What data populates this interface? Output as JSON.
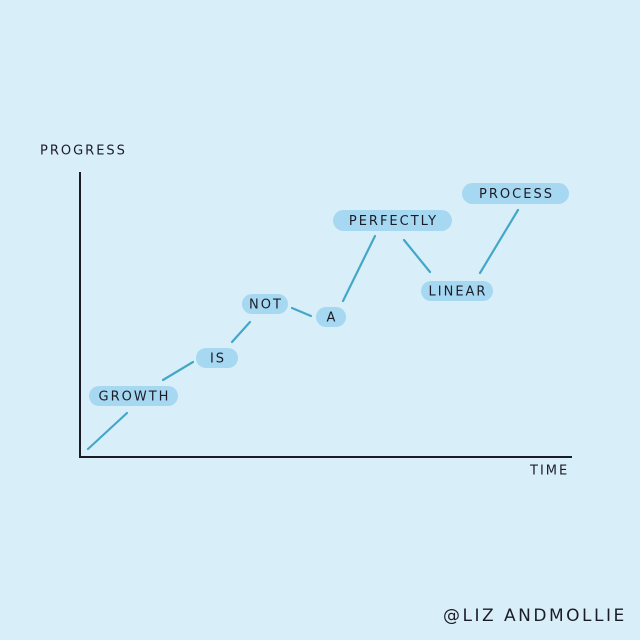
{
  "axes": {
    "y_label": "PROGRESS",
    "x_label": "TIME"
  },
  "words": [
    "GROWTH",
    "IS",
    "NOT",
    "A",
    "PERFECTLY",
    "LINEAR",
    "PROCESS"
  ],
  "credit": "@LIZ ANDMOLLIE"
}
